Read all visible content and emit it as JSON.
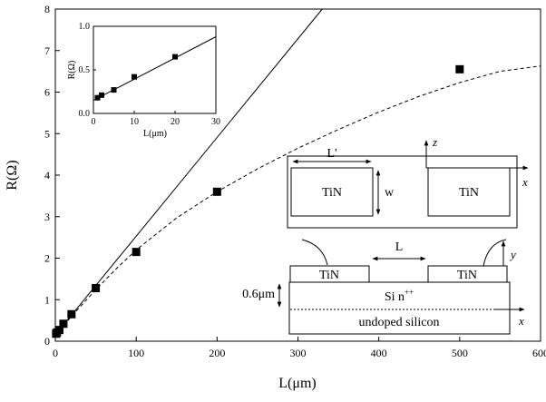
{
  "chart_data": [
    {
      "type": "scatter",
      "xlabel": "L(μm)",
      "ylabel": "R(Ω)",
      "xlim": [
        0,
        600
      ],
      "ylim": [
        0,
        8
      ],
      "xticks": [
        "0",
        "100",
        "200",
        "300",
        "400",
        "500",
        "600"
      ],
      "yticks": [
        "0",
        "1",
        "2",
        "3",
        "4",
        "5",
        "6",
        "7",
        "8"
      ],
      "grid": false,
      "series": [
        {
          "style": "markers",
          "x": [
            1,
            2,
            5,
            10,
            20,
            50,
            100,
            200,
            500
          ],
          "y": [
            0.18,
            0.21,
            0.27,
            0.42,
            0.65,
            1.28,
            2.15,
            3.6,
            6.55
          ]
        },
        {
          "style": "solid-line",
          "x": [
            0,
            330
          ],
          "y": [
            0.15,
            8.0
          ]
        },
        {
          "style": "dashed-curve",
          "x": [
            0,
            25,
            50,
            75,
            100,
            150,
            200,
            250,
            300,
            350,
            400,
            450,
            500,
            550,
            600
          ],
          "y": [
            0.15,
            0.71,
            1.24,
            1.74,
            2.2,
            2.97,
            3.6,
            4.15,
            4.65,
            5.1,
            5.52,
            5.9,
            6.23,
            6.5,
            6.63
          ]
        }
      ]
    },
    {
      "type": "scatter",
      "xlabel": "L(μm)",
      "ylabel": "R(Ω)",
      "xlim": [
        0,
        30
      ],
      "ylim": [
        0,
        1.0
      ],
      "xticks": [
        "0",
        "10",
        "20",
        "30"
      ],
      "yticks": [
        "0.0",
        "0.5",
        "1.0"
      ],
      "series": [
        {
          "style": "markers",
          "x": [
            1,
            2,
            5,
            10,
            20
          ],
          "y": [
            0.18,
            0.21,
            0.27,
            0.42,
            0.65
          ]
        },
        {
          "style": "solid-line",
          "x": [
            0,
            30
          ],
          "y": [
            0.15,
            0.88
          ]
        }
      ]
    }
  ],
  "schematic": {
    "top_view": {
      "left_pad": "TiN",
      "right_pad": "TiN",
      "length_label": "L'",
      "width_label": "w",
      "axis_z": "z",
      "axis_x": "x"
    },
    "side_view": {
      "left_pad": "TiN",
      "right_pad": "TiN",
      "gap_label": "L",
      "axis_y": "y",
      "axis_x": "x",
      "depth_label": "0.6μm",
      "doped_layer": "Si n",
      "doped_superscript": "++",
      "substrate": "undoped silicon"
    }
  }
}
